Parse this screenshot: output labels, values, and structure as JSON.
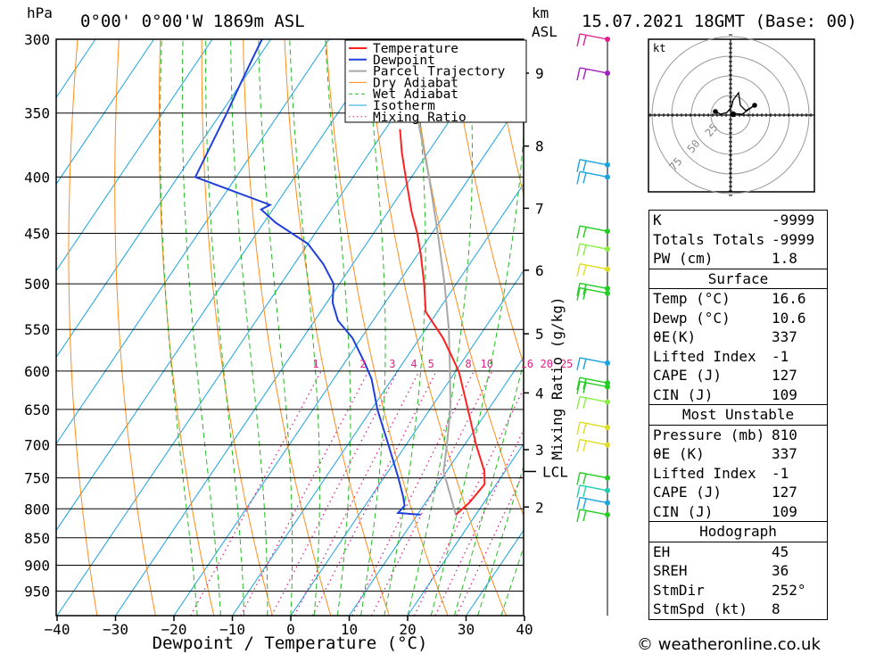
{
  "header": {
    "location": "0°00' 0°00'W 1869m ASL",
    "datetime": "15.07.2021 18GMT (Base: 00)",
    "hpa_label": "hPa",
    "km_label": "km",
    "asl_label": "ASL"
  },
  "chart_data": {
    "type": "line",
    "subtype": "skew-T log-P sounding",
    "xlabel": "Dewpoint / Temperature (°C)",
    "ylabel": "hPa",
    "x_ticks": [
      -40,
      -30,
      -20,
      -10,
      0,
      10,
      20,
      30,
      40
    ],
    "pressure_ticks": [
      300,
      350,
      400,
      450,
      500,
      550,
      600,
      650,
      700,
      750,
      800,
      850,
      900,
      950
    ],
    "km_ticks": [
      {
        "label": "9",
        "p": 322
      },
      {
        "label": "8",
        "p": 375
      },
      {
        "label": "7",
        "p": 427
      },
      {
        "label": "6",
        "p": 486
      },
      {
        "label": "5",
        "p": 555
      },
      {
        "label": "4",
        "p": 628
      },
      {
        "label": "3",
        "p": 707
      },
      {
        "label": "2",
        "p": 797
      }
    ],
    "lcl_label": "LCL",
    "lcl_pressure": 740,
    "mixing_ratio_axis_label": "Mixing Ratio (g/kg)",
    "mixing_ratio_labels": [
      "1",
      "2",
      "3",
      "4",
      "5",
      "8",
      "10",
      "16",
      "20",
      "25"
    ],
    "legend": [
      "Temperature",
      "Dewpoint",
      "Parcel Trajectory",
      "Dry Adiabat",
      "Wet Adiabat",
      "Isotherm",
      "Mixing Ratio"
    ],
    "colors": {
      "temperature": "#ff2020",
      "dewpoint": "#1f3fdd",
      "parcel": "#a8a8a8",
      "dry_adiabat": "#ff8c1a",
      "wet_adiabat": "#22bb22",
      "isotherm": "#1aa3e0",
      "mixing_ratio": "#dd2288"
    },
    "temperature": [
      {
        "p": 810,
        "t": 16.6
      },
      {
        "p": 790,
        "t": 17.5
      },
      {
        "p": 760,
        "t": 18.0
      },
      {
        "p": 740,
        "t": 16.5
      },
      {
        "p": 700,
        "t": 12.0
      },
      {
        "p": 650,
        "t": 6.5
      },
      {
        "p": 600,
        "t": 0.5
      },
      {
        "p": 560,
        "t": -6.0
      },
      {
        "p": 530,
        "t": -12.0
      },
      {
        "p": 500,
        "t": -15.5
      },
      {
        "p": 470,
        "t": -19.5
      },
      {
        "p": 450,
        "t": -22.5
      },
      {
        "p": 430,
        "t": -26.0
      },
      {
        "p": 400,
        "t": -31.0
      },
      {
        "p": 380,
        "t": -34.5
      },
      {
        "p": 362,
        "t": -37.5
      }
    ],
    "dewpoint": [
      {
        "p": 810,
        "t": 10.6
      },
      {
        "p": 807,
        "t": 6.5
      },
      {
        "p": 795,
        "t": 6.8
      },
      {
        "p": 780,
        "t": 5.5
      },
      {
        "p": 750,
        "t": 2.5
      },
      {
        "p": 700,
        "t": -3.0
      },
      {
        "p": 650,
        "t": -9.0
      },
      {
        "p": 610,
        "t": -13.5
      },
      {
        "p": 590,
        "t": -16.5
      },
      {
        "p": 560,
        "t": -21.5
      },
      {
        "p": 540,
        "t": -26.0
      },
      {
        "p": 520,
        "t": -29.0
      },
      {
        "p": 500,
        "t": -31.0
      },
      {
        "p": 480,
        "t": -35.0
      },
      {
        "p": 460,
        "t": -40.0
      },
      {
        "p": 440,
        "t": -48.0
      },
      {
        "p": 428,
        "t": -52.0
      },
      {
        "p": 424,
        "t": -51.0
      },
      {
        "p": 400,
        "t": -67.0
      },
      {
        "p": 350,
        "t": -69.0
      },
      {
        "p": 330,
        "t": -70.0
      },
      {
        "p": 320,
        "t": -70.5
      },
      {
        "p": 310,
        "t": -71.0
      },
      {
        "p": 300,
        "t": -71.5
      }
    ],
    "parcel": [
      {
        "p": 810,
        "t": 16.6
      },
      {
        "p": 740,
        "t": 9.5
      },
      {
        "p": 700,
        "t": 7.0
      },
      {
        "p": 650,
        "t": 3.5
      },
      {
        "p": 600,
        "t": -1.0
      },
      {
        "p": 550,
        "t": -6.0
      },
      {
        "p": 500,
        "t": -12.0
      },
      {
        "p": 450,
        "t": -19.0
      },
      {
        "p": 400,
        "t": -27.0
      },
      {
        "p": 350,
        "t": -36.5
      },
      {
        "p": 300,
        "t": -48.0
      }
    ]
  },
  "winds": {
    "barbs_p": [
      300,
      322,
      390,
      400,
      448,
      465,
      485,
      505,
      510,
      590,
      615,
      620,
      640,
      675,
      700,
      750,
      770,
      790,
      810
    ],
    "colors": [
      "#e0208a",
      "#a020c0",
      "#1aa3e0",
      "#1aa3e0",
      "#22cc22",
      "#88ee44",
      "#dddd22",
      "#22cc22",
      "#22cc22",
      "#1aa3e0",
      "#22cc22",
      "#22cc22",
      "#88ee44",
      "#dddd22",
      "#dddd22",
      "#22cc22",
      "#22ccaa",
      "#1aa3e0",
      "#22cc22"
    ]
  },
  "hodograph": {
    "unit": "kt",
    "ring_labels": [
      "25",
      "50",
      "75"
    ]
  },
  "indices": {
    "rows": [
      {
        "label": "K",
        "value": "-9999"
      },
      {
        "label": "Totals Totals",
        "value": "-9999"
      },
      {
        "label": "PW (cm)",
        "value": "1.8"
      }
    ]
  },
  "surface": {
    "title": "Surface",
    "rows": [
      {
        "label": "Temp (°C)",
        "value": "16.6"
      },
      {
        "label": "Dewp (°C)",
        "value": "10.6"
      },
      {
        "label": "θE(K)",
        "value": "337"
      },
      {
        "label": "Lifted Index",
        "value": "-1"
      },
      {
        "label": "CAPE (J)",
        "value": "127"
      },
      {
        "label": "CIN (J)",
        "value": "109"
      }
    ]
  },
  "most_unstable": {
    "title": "Most Unstable",
    "rows": [
      {
        "label": "Pressure (mb)",
        "value": "810"
      },
      {
        "label": "θE (K)",
        "value": "337"
      },
      {
        "label": "Lifted Index",
        "value": "-1"
      },
      {
        "label": "CAPE (J)",
        "value": "127"
      },
      {
        "label": "CIN (J)",
        "value": "109"
      }
    ]
  },
  "hodograph_table": {
    "title": "Hodograph",
    "rows": [
      {
        "label": "EH",
        "value": "45"
      },
      {
        "label": "SREH",
        "value": "36"
      },
      {
        "label": "StmDir",
        "value": "252°"
      },
      {
        "label": "StmSpd (kt)",
        "value": "8"
      }
    ]
  },
  "credit": "© weatheronline.co.uk"
}
